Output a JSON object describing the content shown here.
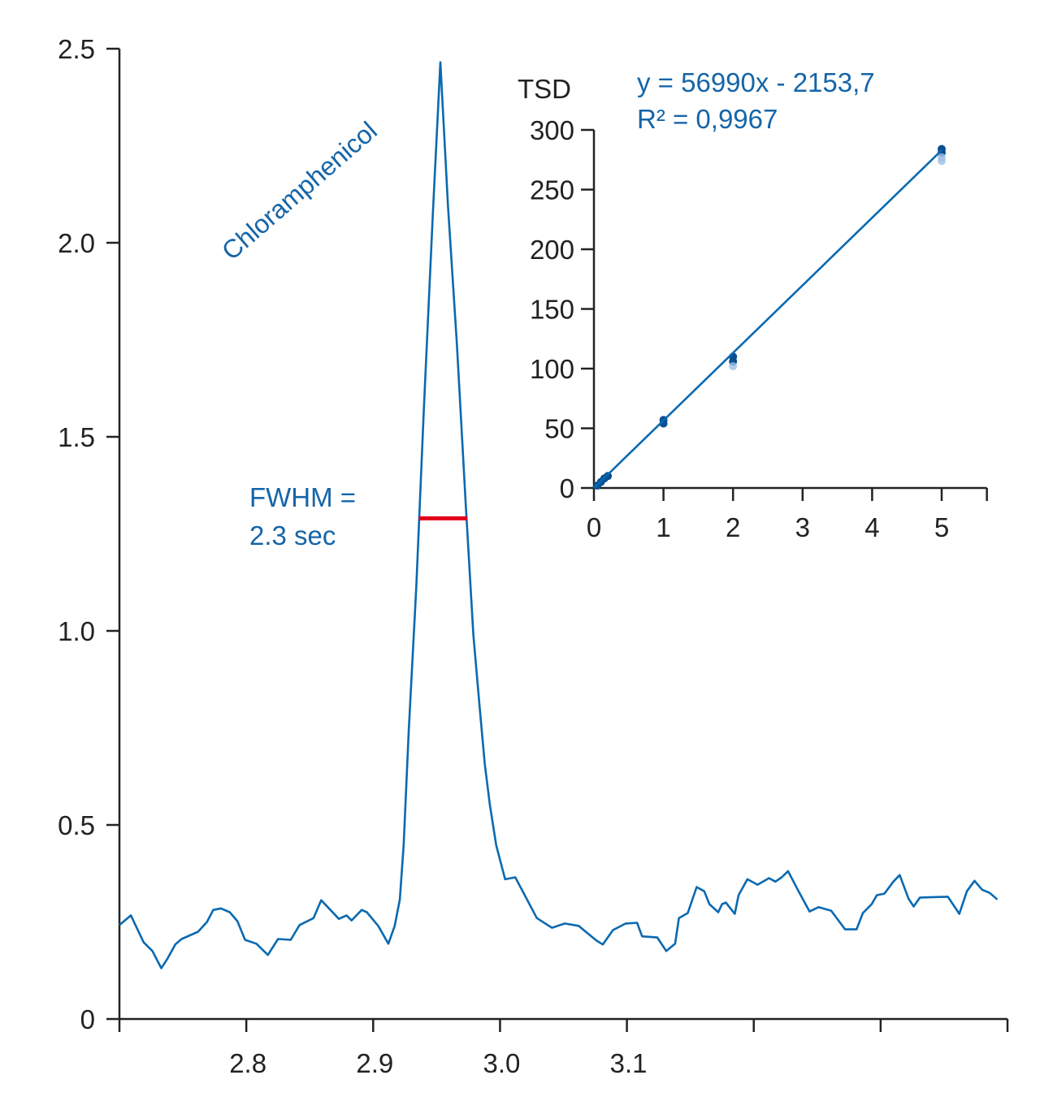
{
  "colors": {
    "trace": "#0a69b0",
    "text_blue": "#1565a8",
    "fwhm": "#e2001a",
    "axis": "#222222",
    "point": "#0a4f92",
    "point_light": "#9fbfe6"
  },
  "chart_data": [
    {
      "type": "line",
      "xlim": [
        2.7,
        3.4
      ],
      "ylim": [
        0,
        2.5
      ],
      "x_ticks": [
        2.7,
        2.8,
        2.9,
        3.0,
        3.1,
        3.2,
        3.3,
        3.4
      ],
      "x_tick_labels": [
        "",
        "2.8",
        "2.9",
        "3.0",
        "3.1",
        "",
        "",
        ""
      ],
      "y_ticks": [
        0,
        0.5,
        1.0,
        1.5,
        2.0,
        2.5
      ],
      "y_tick_labels": [
        "0",
        "0.5",
        "1.0",
        "1.5",
        "2.0",
        "2.5"
      ],
      "peak_label": "Chloramphenicol",
      "fwhm_label_1": "FWHM =",
      "fwhm_label_2": "2.3 sec",
      "fwhm_segment": {
        "x": [
          2.936,
          2.974
        ],
        "y": 1.29
      },
      "series": [
        {
          "x": [
            2.7,
            2.709,
            2.719,
            2.726,
            2.733,
            2.738,
            2.744,
            2.749,
            2.762,
            2.769,
            2.774,
            2.78,
            2.787,
            2.793,
            2.799,
            2.808,
            2.817,
            2.825,
            2.835,
            2.842,
            2.853,
            2.859,
            2.873,
            2.879,
            2.883,
            2.891,
            2.895,
            2.904,
            2.912,
            2.917,
            2.921,
            2.924,
            2.928,
            2.934,
            2.94,
            2.947,
            2.953,
            2.959,
            2.966,
            2.973,
            2.979,
            2.984,
            2.988,
            2.992,
            2.997,
            3.004,
            3.012,
            3.029,
            3.041,
            3.051,
            3.062,
            3.076,
            3.081,
            3.089,
            3.099,
            3.108,
            3.112,
            3.124,
            3.131,
            3.138,
            3.141,
            3.148,
            3.155,
            3.161,
            3.165,
            3.172,
            3.175,
            3.178,
            3.185,
            3.188,
            3.195,
            3.203,
            3.212,
            3.217,
            3.222,
            3.227,
            3.235,
            3.244,
            3.251,
            3.261,
            3.272,
            3.281,
            3.286,
            3.293,
            3.297,
            3.303,
            3.31,
            3.315,
            3.322,
            3.326,
            3.331,
            3.353,
            3.362,
            3.368,
            3.374,
            3.38,
            3.386,
            3.392
          ],
          "y": [
            0.242,
            0.267,
            0.198,
            0.175,
            0.131,
            0.156,
            0.192,
            0.206,
            0.225,
            0.25,
            0.281,
            0.285,
            0.275,
            0.252,
            0.204,
            0.194,
            0.165,
            0.206,
            0.204,
            0.242,
            0.26,
            0.306,
            0.258,
            0.267,
            0.254,
            0.281,
            0.275,
            0.24,
            0.194,
            0.24,
            0.308,
            0.448,
            0.74,
            1.115,
            1.573,
            2.073,
            2.465,
            2.094,
            1.74,
            1.323,
            0.99,
            0.802,
            0.656,
            0.552,
            0.448,
            0.36,
            0.365,
            0.26,
            0.235,
            0.246,
            0.24,
            0.202,
            0.192,
            0.229,
            0.246,
            0.248,
            0.213,
            0.21,
            0.175,
            0.194,
            0.26,
            0.273,
            0.34,
            0.329,
            0.296,
            0.275,
            0.296,
            0.3,
            0.271,
            0.319,
            0.36,
            0.346,
            0.363,
            0.354,
            0.365,
            0.381,
            0.331,
            0.277,
            0.288,
            0.279,
            0.231,
            0.231,
            0.273,
            0.296,
            0.319,
            0.323,
            0.354,
            0.371,
            0.31,
            0.29,
            0.313,
            0.315,
            0.271,
            0.329,
            0.356,
            0.333,
            0.325,
            0.308
          ]
        }
      ]
    },
    {
      "type": "scatter",
      "ylabel": "TSD",
      "equation": "y = 56990x - 2153,7",
      "r_squared": "R² = 0,9967",
      "xlim": [
        0,
        5.65
      ],
      "ylim": [
        0,
        300
      ],
      "x_ticks": [
        0,
        1,
        2,
        3,
        4,
        5
      ],
      "x_tick_labels": [
        "0",
        "1",
        "2",
        "3",
        "4",
        "5"
      ],
      "y_ticks": [
        0,
        50,
        100,
        150,
        200,
        250,
        300
      ],
      "y_tick_labels": [
        "0",
        "50",
        "100",
        "150",
        "200",
        "250",
        "300"
      ],
      "points": {
        "x": [
          0.05,
          0.1,
          0.15,
          0.2,
          1,
          1,
          2,
          2,
          2,
          5,
          5,
          5,
          5
        ],
        "y": [
          2,
          5,
          8,
          10,
          57,
          54,
          110,
          106,
          102,
          284,
          281,
          277,
          274
        ]
      },
      "fit_line": {
        "x": [
          0,
          5
        ],
        "y": [
          0,
          283
        ]
      }
    }
  ]
}
